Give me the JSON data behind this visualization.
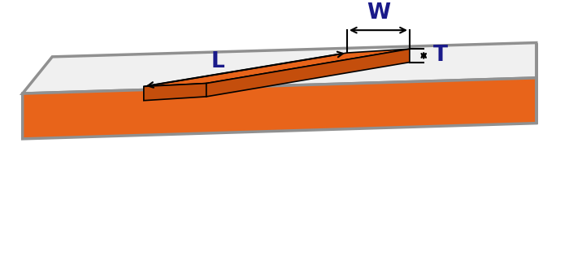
{
  "board_color_top": "#f0f0f0",
  "board_outline_color": "#909090",
  "copper_color_top": "#e8641a",
  "copper_color_side": "#c44e0c",
  "background_color": "#ffffff",
  "label_color": "#1a1a8a",
  "arrow_color": "#000000",
  "label_W": "W",
  "label_T": "T",
  "label_L": "L",
  "label_fontsize": 19,
  "label_fontweight": "bold"
}
